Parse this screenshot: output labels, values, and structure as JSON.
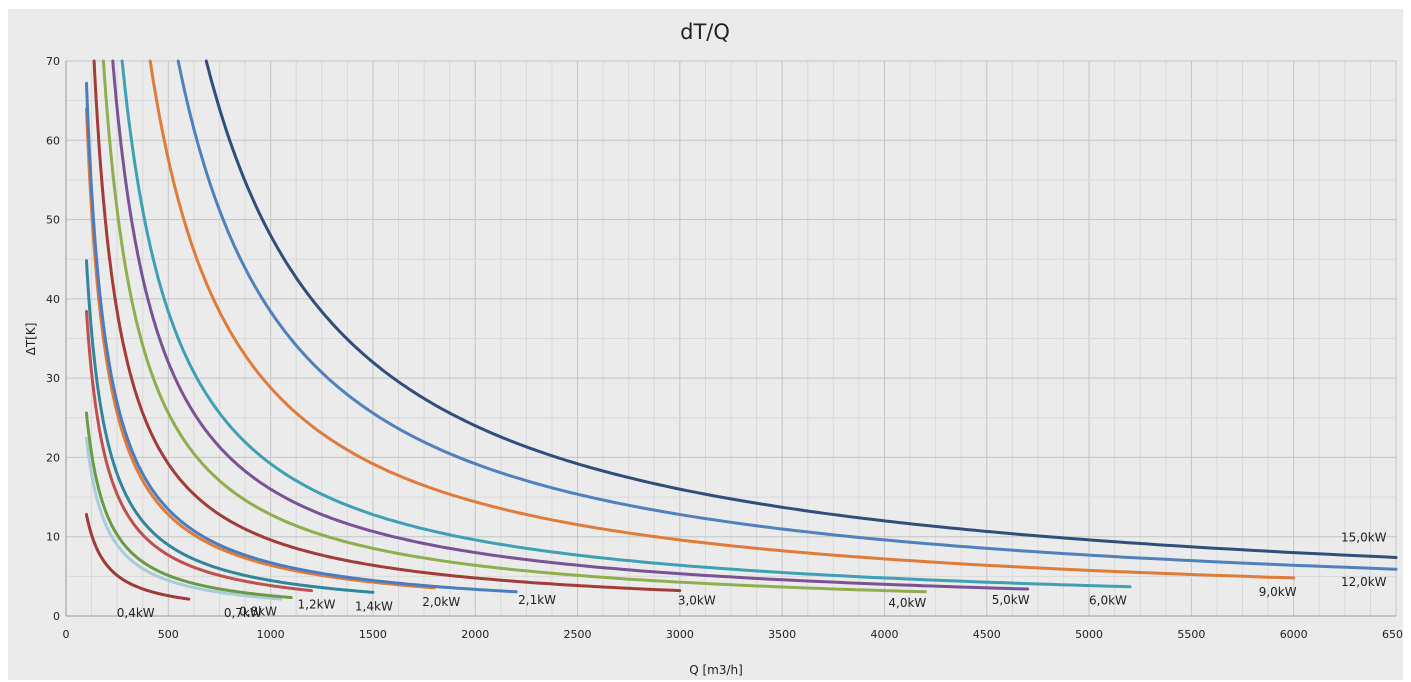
{
  "chart_data": {
    "type": "line",
    "title": "dT/Q",
    "xlabel": "Q [m3/h]",
    "ylabel": "ΔT[K]",
    "xlim": [
      0,
      6500
    ],
    "ylim": [
      0,
      70
    ],
    "x_ticks": [
      0,
      500,
      1000,
      1500,
      2000,
      2500,
      3000,
      3500,
      4000,
      4500,
      5000,
      5500,
      6000,
      6500
    ],
    "y_ticks": [
      0,
      10,
      20,
      30,
      40,
      50,
      60,
      70
    ],
    "grid": true,
    "legend": "none",
    "series": [
      {
        "name": "0,4kW",
        "power_kw": 0.4,
        "x_range": [
          100,
          600
        ],
        "color": "#9e3a37"
      },
      {
        "name": "0,7kW",
        "power_kw": 0.7,
        "x_range": [
          100,
          1050
        ],
        "color": "#a9cdd8"
      },
      {
        "name": "0,8kW",
        "power_kw": 0.8,
        "x_range": [
          100,
          1100
        ],
        "color": "#6a9a45"
      },
      {
        "name": "1,2kW",
        "power_kw": 1.2,
        "x_range": [
          100,
          1200
        ],
        "color": "#c0504d"
      },
      {
        "name": "1,4kW",
        "power_kw": 1.4,
        "x_range": [
          100,
          1500
        ],
        "color": "#31859c"
      },
      {
        "name": "2,0kW",
        "power_kw": 2.0,
        "x_range": [
          100,
          1800
        ],
        "color": "#e07b39"
      },
      {
        "name": "2,1kW",
        "power_kw": 2.1,
        "x_range": [
          100,
          2200
        ],
        "color": "#4b7cbf"
      },
      {
        "name": "3,0kW",
        "power_kw": 3.0,
        "x_range": [
          100,
          3000
        ],
        "color": "#a33b3b"
      },
      {
        "name": "4,0kW",
        "power_kw": 4.0,
        "x_range": [
          100,
          4200
        ],
        "color": "#8fae4d"
      },
      {
        "name": "5,0kW",
        "power_kw": 5.0,
        "x_range": [
          100,
          4700
        ],
        "color": "#7a5296"
      },
      {
        "name": "6,0kW",
        "power_kw": 6.0,
        "x_range": [
          100,
          5200
        ],
        "color": "#3f9fb4"
      },
      {
        "name": "9,0kW",
        "power_kw": 9.0,
        "x_range": [
          100,
          6000
        ],
        "color": "#e07b39"
      },
      {
        "name": "12,0kW",
        "power_kw": 12.0,
        "x_range": [
          100,
          6500
        ],
        "color": "#4f81bd"
      },
      {
        "name": "15,0kW",
        "power_kw": 15.0,
        "x_range": [
          100,
          6500
        ],
        "color": "#2f4f7a"
      }
    ]
  }
}
